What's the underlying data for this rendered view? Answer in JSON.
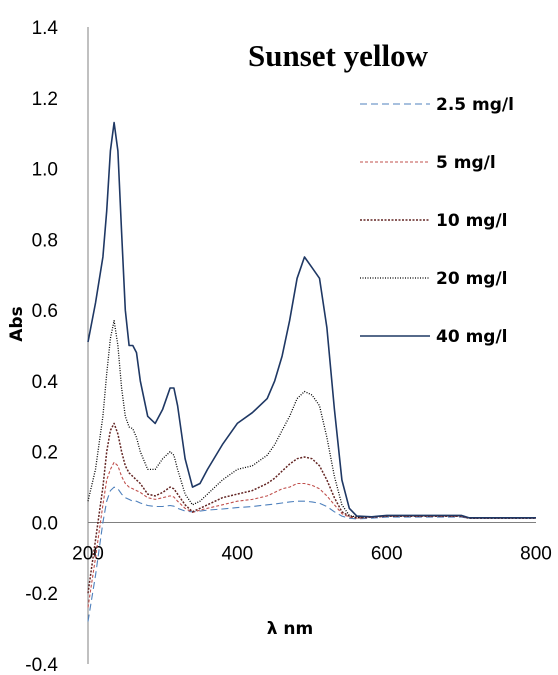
{
  "chart_data": {
    "type": "line",
    "title": "Sunset yellow",
    "xlabel": "λ nm",
    "ylabel": "Abs",
    "xlim": [
      200,
      800
    ],
    "ylim": [
      -0.4,
      1.4
    ],
    "x_ticks": [
      "200",
      "400",
      "600",
      "800"
    ],
    "y_ticks": [
      "-0.4",
      "-0.2",
      "0.0",
      "0.2",
      "0.4",
      "0.6",
      "0.8",
      "1.0",
      "1.2",
      "1.4"
    ],
    "grid": false,
    "legend_position": "right",
    "x": [
      200,
      210,
      220,
      225,
      230,
      235,
      240,
      245,
      250,
      255,
      260,
      265,
      270,
      280,
      290,
      300,
      310,
      315,
      320,
      330,
      340,
      350,
      360,
      380,
      400,
      420,
      440,
      450,
      460,
      470,
      480,
      490,
      500,
      510,
      520,
      530,
      540,
      550,
      560,
      580,
      600,
      650,
      700,
      710,
      750,
      800
    ],
    "series": [
      {
        "name": "2.5 mg/l",
        "color": "#4f81bd",
        "dash": "dash",
        "values": [
          -0.28,
          -0.15,
          0.0,
          0.06,
          0.09,
          0.1,
          0.095,
          0.08,
          0.07,
          0.065,
          0.06,
          0.06,
          0.055,
          0.048,
          0.045,
          0.045,
          0.048,
          0.046,
          0.04,
          0.032,
          0.03,
          0.032,
          0.035,
          0.038,
          0.042,
          0.045,
          0.05,
          0.052,
          0.055,
          0.058,
          0.06,
          0.06,
          0.058,
          0.054,
          0.045,
          0.03,
          0.018,
          0.012,
          0.01,
          0.012,
          0.015,
          0.015,
          0.015,
          0.012,
          0.012,
          0.012
        ]
      },
      {
        "name": "5 mg/l",
        "color": "#c0504d",
        "dash": "shortdash",
        "values": [
          -0.24,
          -0.1,
          0.05,
          0.12,
          0.15,
          0.17,
          0.16,
          0.13,
          0.11,
          0.1,
          0.095,
          0.09,
          0.085,
          0.07,
          0.065,
          0.07,
          0.075,
          0.072,
          0.06,
          0.04,
          0.028,
          0.035,
          0.04,
          0.05,
          0.06,
          0.065,
          0.075,
          0.085,
          0.095,
          0.1,
          0.11,
          0.11,
          0.105,
          0.095,
          0.075,
          0.05,
          0.025,
          0.015,
          0.012,
          0.014,
          0.017,
          0.017,
          0.017,
          0.012,
          0.012,
          0.012
        ]
      },
      {
        "name": "10 mg/l",
        "color": "#632523",
        "dash": "dot",
        "values": [
          -0.2,
          -0.05,
          0.1,
          0.2,
          0.26,
          0.28,
          0.25,
          0.2,
          0.16,
          0.14,
          0.13,
          0.12,
          0.11,
          0.08,
          0.075,
          0.085,
          0.1,
          0.095,
          0.08,
          0.05,
          0.03,
          0.04,
          0.05,
          0.07,
          0.08,
          0.09,
          0.11,
          0.125,
          0.145,
          0.165,
          0.18,
          0.185,
          0.18,
          0.16,
          0.12,
          0.07,
          0.03,
          0.018,
          0.013,
          0.015,
          0.018,
          0.018,
          0.018,
          0.012,
          0.012,
          0.012
        ]
      },
      {
        "name": "20 mg/l",
        "color": "#000000",
        "dash": "finedot",
        "values": [
          0.06,
          0.15,
          0.3,
          0.42,
          0.52,
          0.57,
          0.5,
          0.38,
          0.3,
          0.27,
          0.265,
          0.24,
          0.2,
          0.15,
          0.15,
          0.18,
          0.2,
          0.19,
          0.15,
          0.08,
          0.05,
          0.06,
          0.08,
          0.12,
          0.15,
          0.16,
          0.19,
          0.22,
          0.26,
          0.3,
          0.35,
          0.37,
          0.36,
          0.33,
          0.24,
          0.13,
          0.05,
          0.02,
          0.015,
          0.016,
          0.019,
          0.019,
          0.019,
          0.013,
          0.013,
          0.013
        ]
      },
      {
        "name": "40 mg/l",
        "color": "#1f3864",
        "dash": "solid",
        "values": [
          0.51,
          0.62,
          0.75,
          0.88,
          1.05,
          1.13,
          1.05,
          0.82,
          0.6,
          0.5,
          0.5,
          0.48,
          0.4,
          0.3,
          0.28,
          0.32,
          0.38,
          0.38,
          0.33,
          0.18,
          0.1,
          0.11,
          0.15,
          0.22,
          0.28,
          0.31,
          0.35,
          0.4,
          0.47,
          0.57,
          0.69,
          0.75,
          0.72,
          0.69,
          0.55,
          0.32,
          0.12,
          0.04,
          0.018,
          0.016,
          0.02,
          0.02,
          0.02,
          0.013,
          0.013,
          0.013
        ]
      }
    ]
  }
}
